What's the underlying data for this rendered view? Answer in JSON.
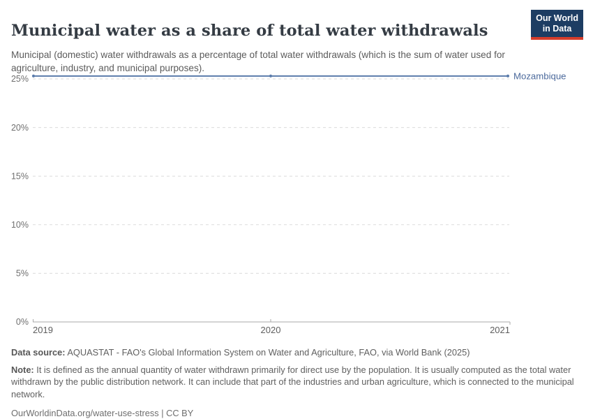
{
  "header": {
    "title": "Municipal water as a share of total water withdrawals",
    "subtitle": "Municipal (domestic) water withdrawals as a percentage of total water withdrawals (which is the sum of water used for agriculture, industry, and municipal purposes).",
    "logo": {
      "line1": "Our World",
      "line2": "in Data"
    }
  },
  "chart_data": {
    "type": "line",
    "title": "Municipal water as a share of total water withdrawals",
    "x": [
      2019,
      2020,
      2021
    ],
    "series": [
      {
        "name": "Mozambique",
        "values": [
          25.3,
          25.3,
          25.3
        ],
        "color": "#5b7cab",
        "label_color": "#4c6a9c"
      }
    ],
    "xlabel": "",
    "ylabel": "",
    "ylim": [
      0,
      25.3
    ],
    "yticks": [
      {
        "value": 0,
        "label": "0%"
      },
      {
        "value": 5,
        "label": "5%"
      },
      {
        "value": 10,
        "label": "10%"
      },
      {
        "value": 15,
        "label": "15%"
      },
      {
        "value": 20,
        "label": "20%"
      },
      {
        "value": 25,
        "label": "25%"
      }
    ],
    "xticks": [
      "2019",
      "2020",
      "2021"
    ],
    "grid": "horizontal-dashed",
    "legend_position": "end-of-line-label"
  },
  "colors": {
    "line": "#5b7cab",
    "entity_label": "#4c6a9c",
    "gridline": "#dbdbdb",
    "axis": "#a9a9a9",
    "y_tick_label": "#6f6f6f",
    "x_tick_label": "#5e5e5e",
    "logo_bg": "#1d3d63",
    "logo_red": "#d63d2b"
  },
  "footer": {
    "data_source_label": "Data source:",
    "data_source_text": " AQUASTAT - FAO's Global Information System on Water and Agriculture, FAO, via World Bank (2025)",
    "note_label": "Note:",
    "note_text": " It is defined as the annual quantity of water withdrawn primarily for direct use by the population. It is usually computed as the total water withdrawn by the public distribution network. It can include that part of the industries and urban agriculture, which is connected to the municipal network.",
    "url": "OurWorldinData.org/water-use-stress | CC BY"
  }
}
